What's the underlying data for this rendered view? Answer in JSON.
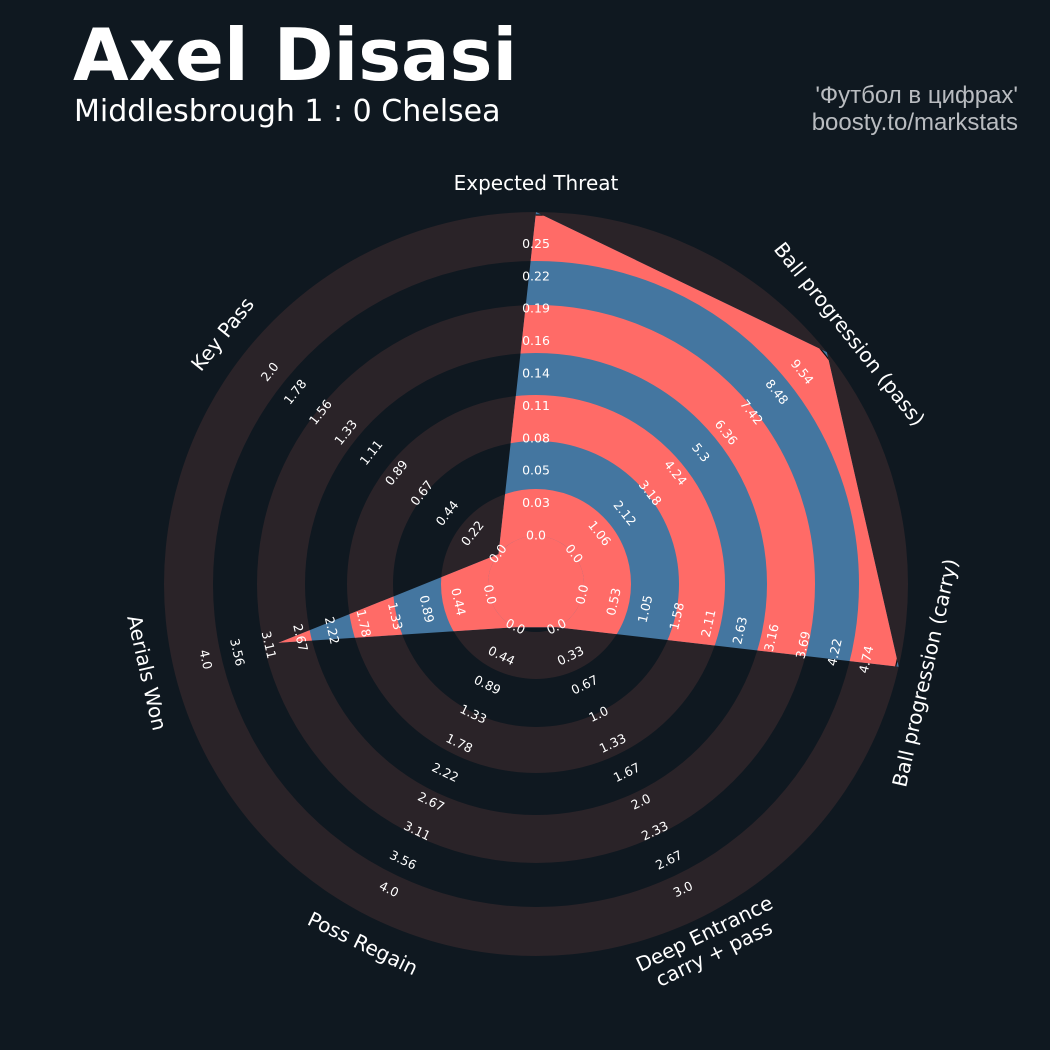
{
  "header": {
    "title": "Axel Disasi",
    "subtitle": "Middlesbrough 1 : 0 Chelsea",
    "credit_line1": "'Футбол в цифрах'",
    "credit_line2": "boosty.to/markstats"
  },
  "colors": {
    "background": "#0f1820",
    "ring_dark": "#0f1820",
    "ring_light": "#2a2328",
    "player_fill": "#4476a0",
    "player_alt": "#ff6b67",
    "text": "#ffffff",
    "credit": "#b9bcc0"
  },
  "chart_data": {
    "type": "radar",
    "title": "Axel Disasi",
    "subtitle": "Middlesbrough 1 : 0 Chelsea",
    "parameters": [
      {
        "name": "Expected Threat",
        "label_lines": [
          "Expected Threat"
        ],
        "value": 0.25,
        "ticks": [
          "0.0",
          "0.03",
          "0.05",
          "0.08",
          "0.11",
          "0.14",
          "0.16",
          "0.19",
          "0.22",
          "0.25"
        ]
      },
      {
        "name": "Ball progression (pass)",
        "label_lines": [
          "Ball progression (pass)"
        ],
        "value": 9.54,
        "ticks": [
          "0.0",
          "1.06",
          "2.12",
          "3.18",
          "4.24",
          "5.3",
          "6.36",
          "7.42",
          "8.48",
          "9.54"
        ]
      },
      {
        "name": "Ball progression (carry)",
        "label_lines": [
          "Ball progression (carry)"
        ],
        "value": 4.74,
        "ticks": [
          "0.0",
          "0.53",
          "1.05",
          "1.58",
          "2.11",
          "2.63",
          "3.16",
          "3.69",
          "4.22",
          "4.74"
        ]
      },
      {
        "name": "Deep Entrance carry + pass",
        "label_lines": [
          "Deep Entrance",
          "carry + pass"
        ],
        "value": 0.0,
        "ticks": [
          "0.0",
          "0.33",
          "0.67",
          "1.0",
          "1.33",
          "1.67",
          "2.0",
          "2.33",
          "2.67",
          "3.0"
        ]
      },
      {
        "name": "Poss Regain",
        "label_lines": [
          "Poss Regain"
        ],
        "value": 0.0,
        "ticks": [
          "0.0",
          "0.44",
          "0.89",
          "1.33",
          "1.78",
          "2.22",
          "2.67",
          "3.11",
          "3.56",
          "4.0"
        ]
      },
      {
        "name": "Aerials Won",
        "label_lines": [
          "Aerials Won"
        ],
        "value": 2.67,
        "ticks": [
          "0.0",
          "0.44",
          "0.89",
          "1.33",
          "1.78",
          "2.22",
          "2.67",
          "3.11",
          "3.56",
          "4.0"
        ]
      },
      {
        "name": "Key Pass",
        "label_lines": [
          "Key Pass"
        ],
        "value": 0.0,
        "ticks": [
          "0.0",
          "0.22",
          "0.44",
          "0.67",
          "0.89",
          "1.11",
          "1.33",
          "1.56",
          "1.78",
          "2.0"
        ]
      }
    ]
  }
}
